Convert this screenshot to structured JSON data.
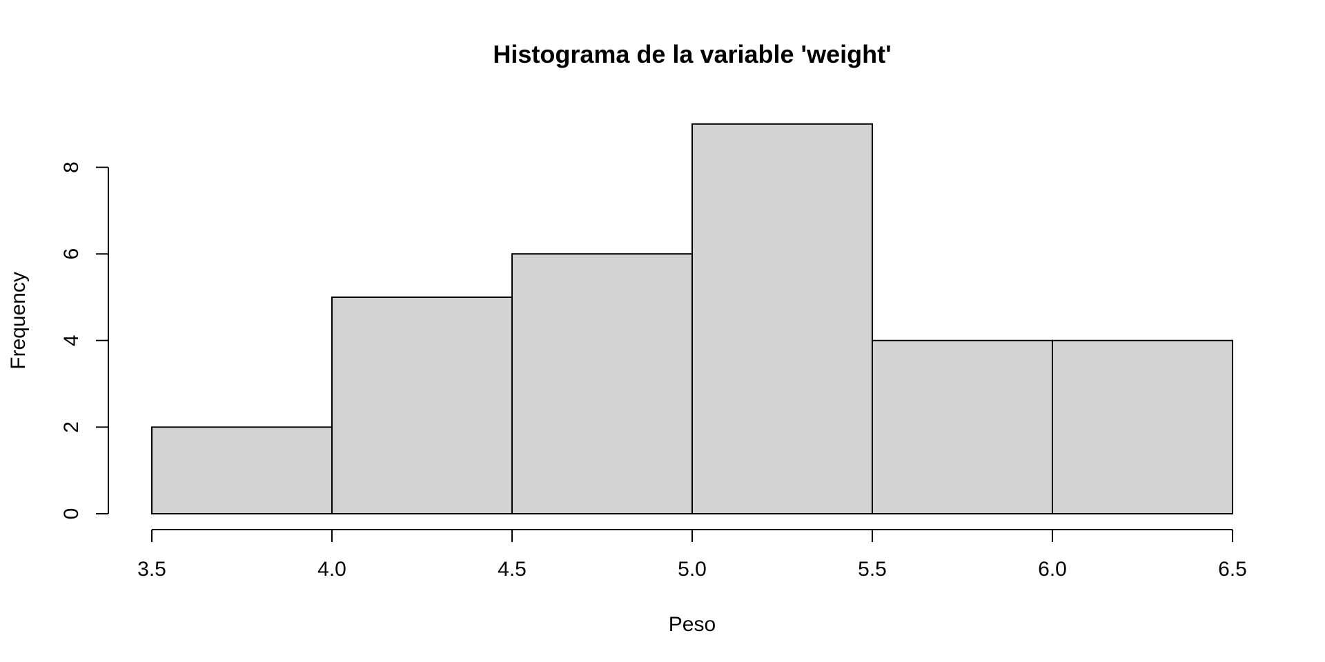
{
  "chart_data": {
    "type": "bar",
    "subtype": "histogram",
    "title": "Histograma de la variable 'weight'",
    "xlabel": "Peso",
    "ylabel": "Frequency",
    "bins": [
      {
        "x0": 3.5,
        "x1": 4.0,
        "count": 2
      },
      {
        "x0": 4.0,
        "x1": 4.5,
        "count": 5
      },
      {
        "x0": 4.5,
        "x1": 5.0,
        "count": 6
      },
      {
        "x0": 5.0,
        "x1": 5.5,
        "count": 9
      },
      {
        "x0": 5.5,
        "x1": 6.0,
        "count": 4
      },
      {
        "x0": 6.0,
        "x1": 6.5,
        "count": 4
      }
    ],
    "xlim": [
      3.5,
      6.5
    ],
    "ylim": [
      0,
      9
    ],
    "x_ticks": [
      3.5,
      4.0,
      4.5,
      5.0,
      5.5,
      6.0,
      6.5
    ],
    "x_tick_labels": [
      "3.5",
      "4.0",
      "4.5",
      "5.0",
      "5.5",
      "6.0",
      "6.5"
    ],
    "y_ticks": [
      0,
      2,
      4,
      6,
      8
    ],
    "y_tick_labels": [
      "0",
      "2",
      "4",
      "6",
      "8"
    ],
    "grid": false,
    "legend": "none",
    "bar_fill": "#d3d3d3",
    "bar_stroke": "#000000"
  }
}
